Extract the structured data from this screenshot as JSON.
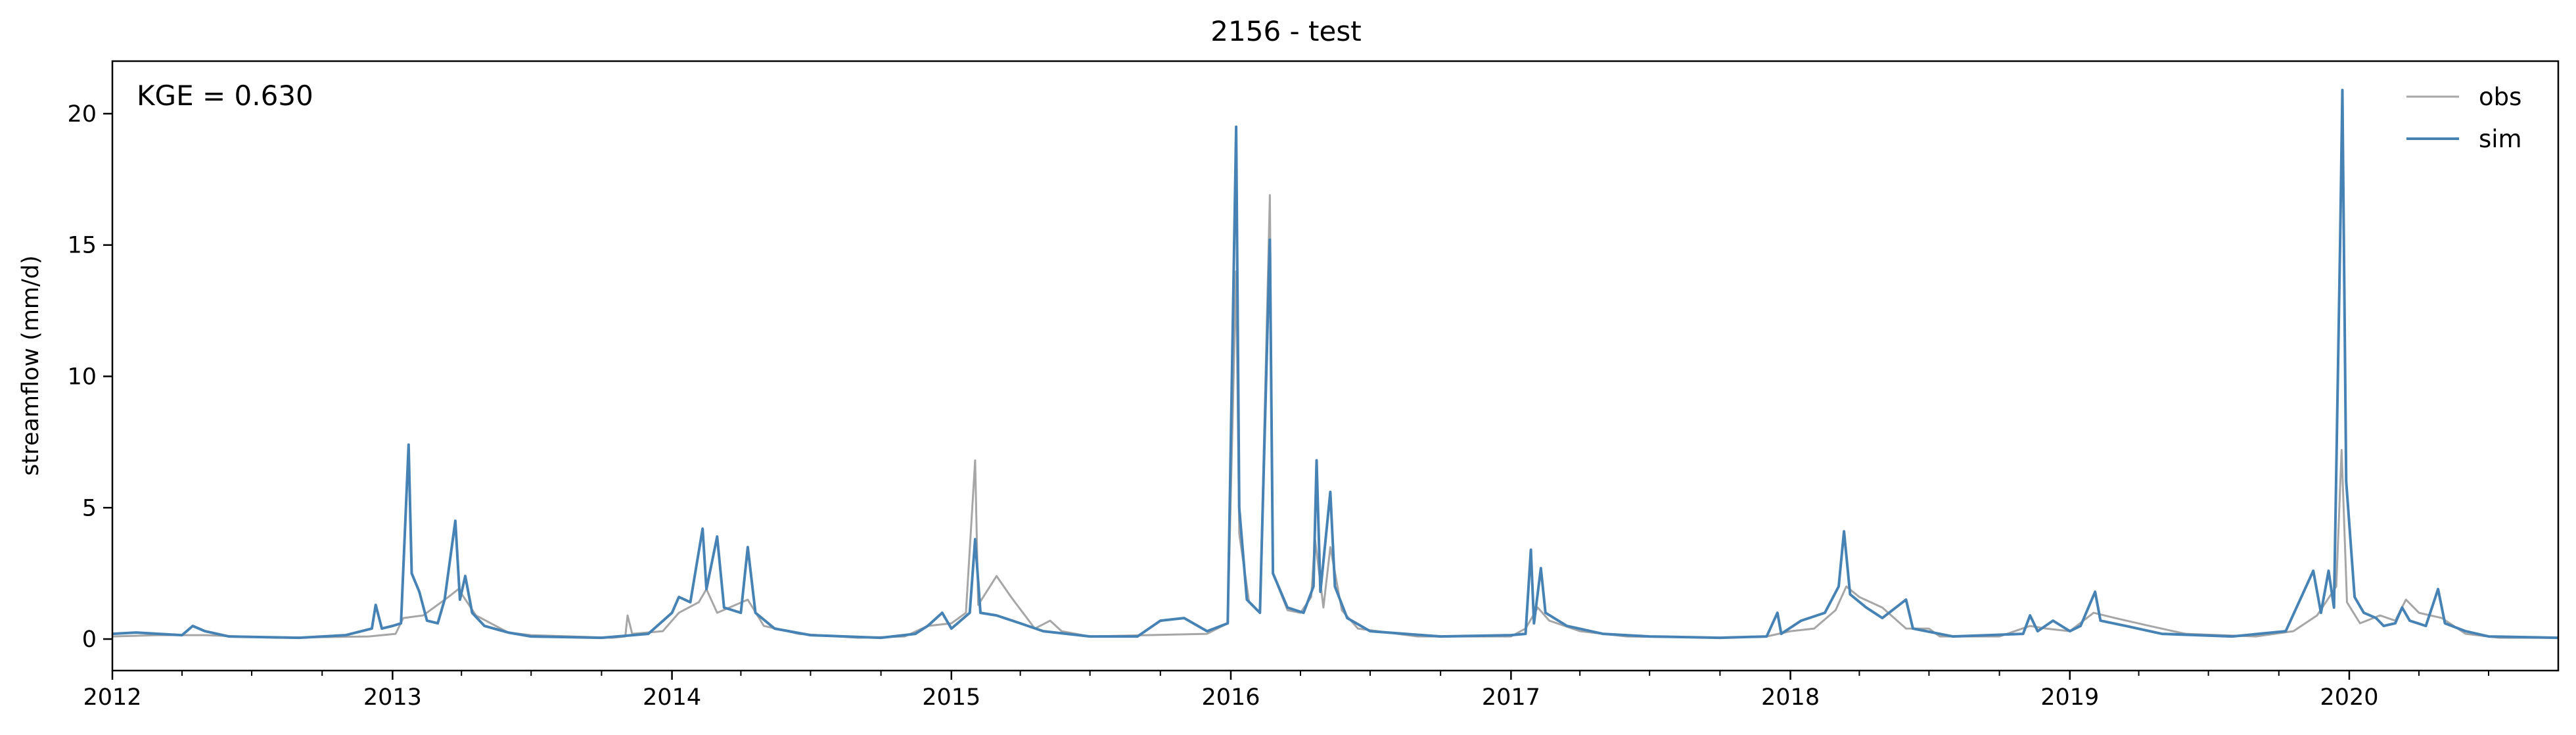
{
  "chart_data": {
    "type": "line",
    "title": "2156 - test",
    "xlabel": "",
    "ylabel": "streamflow (mm/d)",
    "xlim": [
      "2012-01-01",
      "2020-09-30"
    ],
    "ylim": [
      -1.2,
      22
    ],
    "x_ticks": [
      "2012",
      "2013",
      "2014",
      "2015",
      "2016",
      "2017",
      "2018",
      "2019",
      "2020"
    ],
    "y_ticks": [
      0,
      5,
      10,
      15,
      20
    ],
    "annotation": "KGE = 0.630",
    "legend_position": "top-right",
    "grid": false,
    "series": [
      {
        "name": "obs",
        "color": "#a6a6a6",
        "points": [
          [
            "2012-01-01",
            0.1
          ],
          [
            "2012-03-01",
            0.15
          ],
          [
            "2012-05-01",
            0.15
          ],
          [
            "2012-08-01",
            0.05
          ],
          [
            "2012-12-01",
            0.1
          ],
          [
            "2013-01-05",
            0.2
          ],
          [
            "2013-01-15",
            0.8
          ],
          [
            "2013-02-10",
            0.9
          ],
          [
            "2013-03-15",
            1.6
          ],
          [
            "2013-03-28",
            1.9
          ],
          [
            "2013-04-20",
            0.9
          ],
          [
            "2013-06-01",
            0.25
          ],
          [
            "2013-07-01",
            0.15
          ],
          [
            "2013-10-15",
            0.05
          ],
          [
            "2013-11-01",
            0.1
          ],
          [
            "2013-11-04",
            0.9
          ],
          [
            "2013-11-10",
            0.2
          ],
          [
            "2013-12-20",
            0.3
          ],
          [
            "2014-01-10",
            1.0
          ],
          [
            "2014-02-05",
            1.4
          ],
          [
            "2014-02-15",
            1.9
          ],
          [
            "2014-03-01",
            1.0
          ],
          [
            "2014-04-10",
            1.5
          ],
          [
            "2014-05-01",
            0.5
          ],
          [
            "2014-06-15",
            0.2
          ],
          [
            "2014-09-01",
            0.05
          ],
          [
            "2014-11-01",
            0.1
          ],
          [
            "2014-12-01",
            0.5
          ],
          [
            "2015-01-01",
            0.6
          ],
          [
            "2015-01-20",
            1.0
          ],
          [
            "2015-02-01",
            6.8
          ],
          [
            "2015-02-05",
            1.3
          ],
          [
            "2015-03-01",
            2.4
          ],
          [
            "2015-03-20",
            1.6
          ],
          [
            "2015-04-20",
            0.4
          ],
          [
            "2015-05-10",
            0.7
          ],
          [
            "2015-05-25",
            0.3
          ],
          [
            "2015-07-01",
            0.1
          ],
          [
            "2015-12-01",
            0.2
          ],
          [
            "2015-12-28",
            0.6
          ],
          [
            "2016-01-08",
            14.0
          ],
          [
            "2016-01-12",
            4.0
          ],
          [
            "2016-01-25",
            1.4
          ],
          [
            "2016-02-08",
            1.0
          ],
          [
            "2016-02-21",
            16.9
          ],
          [
            "2016-02-25",
            2.5
          ],
          [
            "2016-03-15",
            1.1
          ],
          [
            "2016-04-01",
            1.0
          ],
          [
            "2016-04-15",
            1.6
          ],
          [
            "2016-04-20",
            3.8
          ],
          [
            "2016-05-01",
            1.2
          ],
          [
            "2016-05-10",
            3.5
          ],
          [
            "2016-05-25",
            1.1
          ],
          [
            "2016-06-15",
            0.4
          ],
          [
            "2016-09-01",
            0.1
          ],
          [
            "2016-12-01",
            0.1
          ],
          [
            "2017-01-01",
            0.1
          ],
          [
            "2017-01-20",
            0.4
          ],
          [
            "2017-02-05",
            1.2
          ],
          [
            "2017-02-20",
            0.7
          ],
          [
            "2017-04-01",
            0.3
          ],
          [
            "2017-06-01",
            0.1
          ],
          [
            "2017-10-01",
            0.05
          ],
          [
            "2017-12-01",
            0.1
          ],
          [
            "2018-01-01",
            0.3
          ],
          [
            "2018-02-01",
            0.4
          ],
          [
            "2018-03-01",
            1.1
          ],
          [
            "2018-03-15",
            2.0
          ],
          [
            "2018-04-01",
            1.6
          ],
          [
            "2018-05-01",
            1.2
          ],
          [
            "2018-06-01",
            0.4
          ],
          [
            "2018-07-01",
            0.4
          ],
          [
            "2018-07-15",
            0.1
          ],
          [
            "2018-10-01",
            0.1
          ],
          [
            "2018-11-10",
            0.5
          ],
          [
            "2018-12-01",
            0.4
          ],
          [
            "2019-01-01",
            0.3
          ],
          [
            "2019-02-01",
            1.0
          ],
          [
            "2019-03-01",
            0.8
          ],
          [
            "2019-04-15",
            0.5
          ],
          [
            "2019-06-01",
            0.2
          ],
          [
            "2019-09-01",
            0.1
          ],
          [
            "2019-10-20",
            0.3
          ],
          [
            "2019-11-20",
            0.9
          ],
          [
            "2019-12-15",
            2.0
          ],
          [
            "2019-12-22",
            7.2
          ],
          [
            "2019-12-29",
            1.4
          ],
          [
            "2020-01-15",
            0.6
          ],
          [
            "2020-02-10",
            0.9
          ],
          [
            "2020-03-01",
            0.7
          ],
          [
            "2020-03-15",
            1.5
          ],
          [
            "2020-04-01",
            1.0
          ],
          [
            "2020-05-01",
            0.8
          ],
          [
            "2020-06-01",
            0.2
          ],
          [
            "2020-07-15",
            0.05
          ],
          [
            "2020-09-30",
            0.05
          ]
        ]
      },
      {
        "name": "sim",
        "color": "#4682b4",
        "points": [
          [
            "2012-01-01",
            0.2
          ],
          [
            "2012-02-01",
            0.25
          ],
          [
            "2012-03-01",
            0.2
          ],
          [
            "2012-04-01",
            0.15
          ],
          [
            "2012-04-15",
            0.5
          ],
          [
            "2012-05-01",
            0.3
          ],
          [
            "2012-06-01",
            0.1
          ],
          [
            "2012-09-01",
            0.05
          ],
          [
            "2012-11-01",
            0.15
          ],
          [
            "2012-12-05",
            0.4
          ],
          [
            "2012-12-10",
            1.3
          ],
          [
            "2012-12-18",
            0.4
          ],
          [
            "2013-01-01",
            0.5
          ],
          [
            "2013-01-12",
            0.6
          ],
          [
            "2013-01-22",
            7.4
          ],
          [
            "2013-01-26",
            2.5
          ],
          [
            "2013-02-05",
            1.8
          ],
          [
            "2013-02-15",
            0.7
          ],
          [
            "2013-03-01",
            0.6
          ],
          [
            "2013-03-10",
            1.5
          ],
          [
            "2013-03-24",
            4.5
          ],
          [
            "2013-03-30",
            1.5
          ],
          [
            "2013-04-06",
            2.4
          ],
          [
            "2013-04-15",
            1.0
          ],
          [
            "2013-05-01",
            0.5
          ],
          [
            "2013-06-01",
            0.25
          ],
          [
            "2013-07-01",
            0.1
          ],
          [
            "2013-10-01",
            0.05
          ],
          [
            "2013-12-01",
            0.2
          ],
          [
            "2014-01-01",
            1.0
          ],
          [
            "2014-01-10",
            1.6
          ],
          [
            "2014-01-25",
            1.4
          ],
          [
            "2014-02-10",
            4.2
          ],
          [
            "2014-02-15",
            1.9
          ],
          [
            "2014-03-01",
            3.9
          ],
          [
            "2014-03-10",
            1.2
          ],
          [
            "2014-04-01",
            1.0
          ],
          [
            "2014-04-10",
            3.5
          ],
          [
            "2014-04-20",
            1.0
          ],
          [
            "2014-05-15",
            0.4
          ],
          [
            "2014-07-01",
            0.15
          ],
          [
            "2014-10-01",
            0.05
          ],
          [
            "2014-11-15",
            0.2
          ],
          [
            "2014-12-01",
            0.5
          ],
          [
            "2014-12-20",
            1.0
          ],
          [
            "2015-01-01",
            0.4
          ],
          [
            "2015-01-25",
            1.0
          ],
          [
            "2015-02-01",
            3.8
          ],
          [
            "2015-02-08",
            1.0
          ],
          [
            "2015-03-01",
            0.9
          ],
          [
            "2015-04-01",
            0.6
          ],
          [
            "2015-05-01",
            0.3
          ],
          [
            "2015-07-01",
            0.1
          ],
          [
            "2015-09-01",
            0.1
          ],
          [
            "2015-10-01",
            0.7
          ],
          [
            "2015-11-01",
            0.8
          ],
          [
            "2015-12-01",
            0.3
          ],
          [
            "2015-12-28",
            0.6
          ],
          [
            "2016-01-08",
            19.5
          ],
          [
            "2016-01-12",
            5.0
          ],
          [
            "2016-01-22",
            1.5
          ],
          [
            "2016-02-08",
            1.0
          ],
          [
            "2016-02-21",
            15.2
          ],
          [
            "2016-02-25",
            2.5
          ],
          [
            "2016-03-15",
            1.2
          ],
          [
            "2016-04-05",
            1.0
          ],
          [
            "2016-04-18",
            2.0
          ],
          [
            "2016-04-22",
            6.8
          ],
          [
            "2016-04-27",
            1.8
          ],
          [
            "2016-05-10",
            5.6
          ],
          [
            "2016-05-16",
            2.0
          ],
          [
            "2016-06-01",
            0.8
          ],
          [
            "2016-07-01",
            0.3
          ],
          [
            "2016-10-01",
            0.1
          ],
          [
            "2017-01-01",
            0.15
          ],
          [
            "2017-01-20",
            0.2
          ],
          [
            "2017-01-27",
            3.4
          ],
          [
            "2017-01-31",
            0.6
          ],
          [
            "2017-02-09",
            2.7
          ],
          [
            "2017-02-15",
            1.0
          ],
          [
            "2017-03-15",
            0.5
          ],
          [
            "2017-05-01",
            0.2
          ],
          [
            "2017-07-01",
            0.1
          ],
          [
            "2017-10-01",
            0.05
          ],
          [
            "2017-12-01",
            0.1
          ],
          [
            "2017-12-15",
            1.0
          ],
          [
            "2017-12-20",
            0.2
          ],
          [
            "2018-01-15",
            0.7
          ],
          [
            "2018-02-15",
            1.0
          ],
          [
            "2018-03-05",
            2.0
          ],
          [
            "2018-03-12",
            4.1
          ],
          [
            "2018-03-20",
            1.7
          ],
          [
            "2018-04-10",
            1.2
          ],
          [
            "2018-05-01",
            0.8
          ],
          [
            "2018-06-01",
            1.5
          ],
          [
            "2018-06-10",
            0.4
          ],
          [
            "2018-08-01",
            0.1
          ],
          [
            "2018-11-01",
            0.2
          ],
          [
            "2018-11-10",
            0.9
          ],
          [
            "2018-11-20",
            0.3
          ],
          [
            "2018-12-10",
            0.7
          ],
          [
            "2019-01-01",
            0.3
          ],
          [
            "2019-01-15",
            0.5
          ],
          [
            "2019-02-03",
            1.8
          ],
          [
            "2019-02-10",
            0.7
          ],
          [
            "2019-03-15",
            0.5
          ],
          [
            "2019-05-01",
            0.2
          ],
          [
            "2019-08-01",
            0.1
          ],
          [
            "2019-10-10",
            0.3
          ],
          [
            "2019-11-15",
            2.6
          ],
          [
            "2019-11-25",
            1.0
          ],
          [
            "2019-12-05",
            2.6
          ],
          [
            "2019-12-12",
            1.2
          ],
          [
            "2019-12-20",
            15.0
          ],
          [
            "2019-12-23",
            20.9
          ],
          [
            "2019-12-28",
            6.0
          ],
          [
            "2020-01-08",
            1.6
          ],
          [
            "2020-01-20",
            1.0
          ],
          [
            "2020-02-05",
            0.8
          ],
          [
            "2020-02-15",
            0.5
          ],
          [
            "2020-03-01",
            0.6
          ],
          [
            "2020-03-10",
            1.2
          ],
          [
            "2020-03-20",
            0.7
          ],
          [
            "2020-04-10",
            0.5
          ],
          [
            "2020-04-26",
            1.9
          ],
          [
            "2020-05-05",
            0.6
          ],
          [
            "2020-06-01",
            0.3
          ],
          [
            "2020-07-01",
            0.1
          ],
          [
            "2020-09-30",
            0.05
          ]
        ]
      }
    ]
  }
}
